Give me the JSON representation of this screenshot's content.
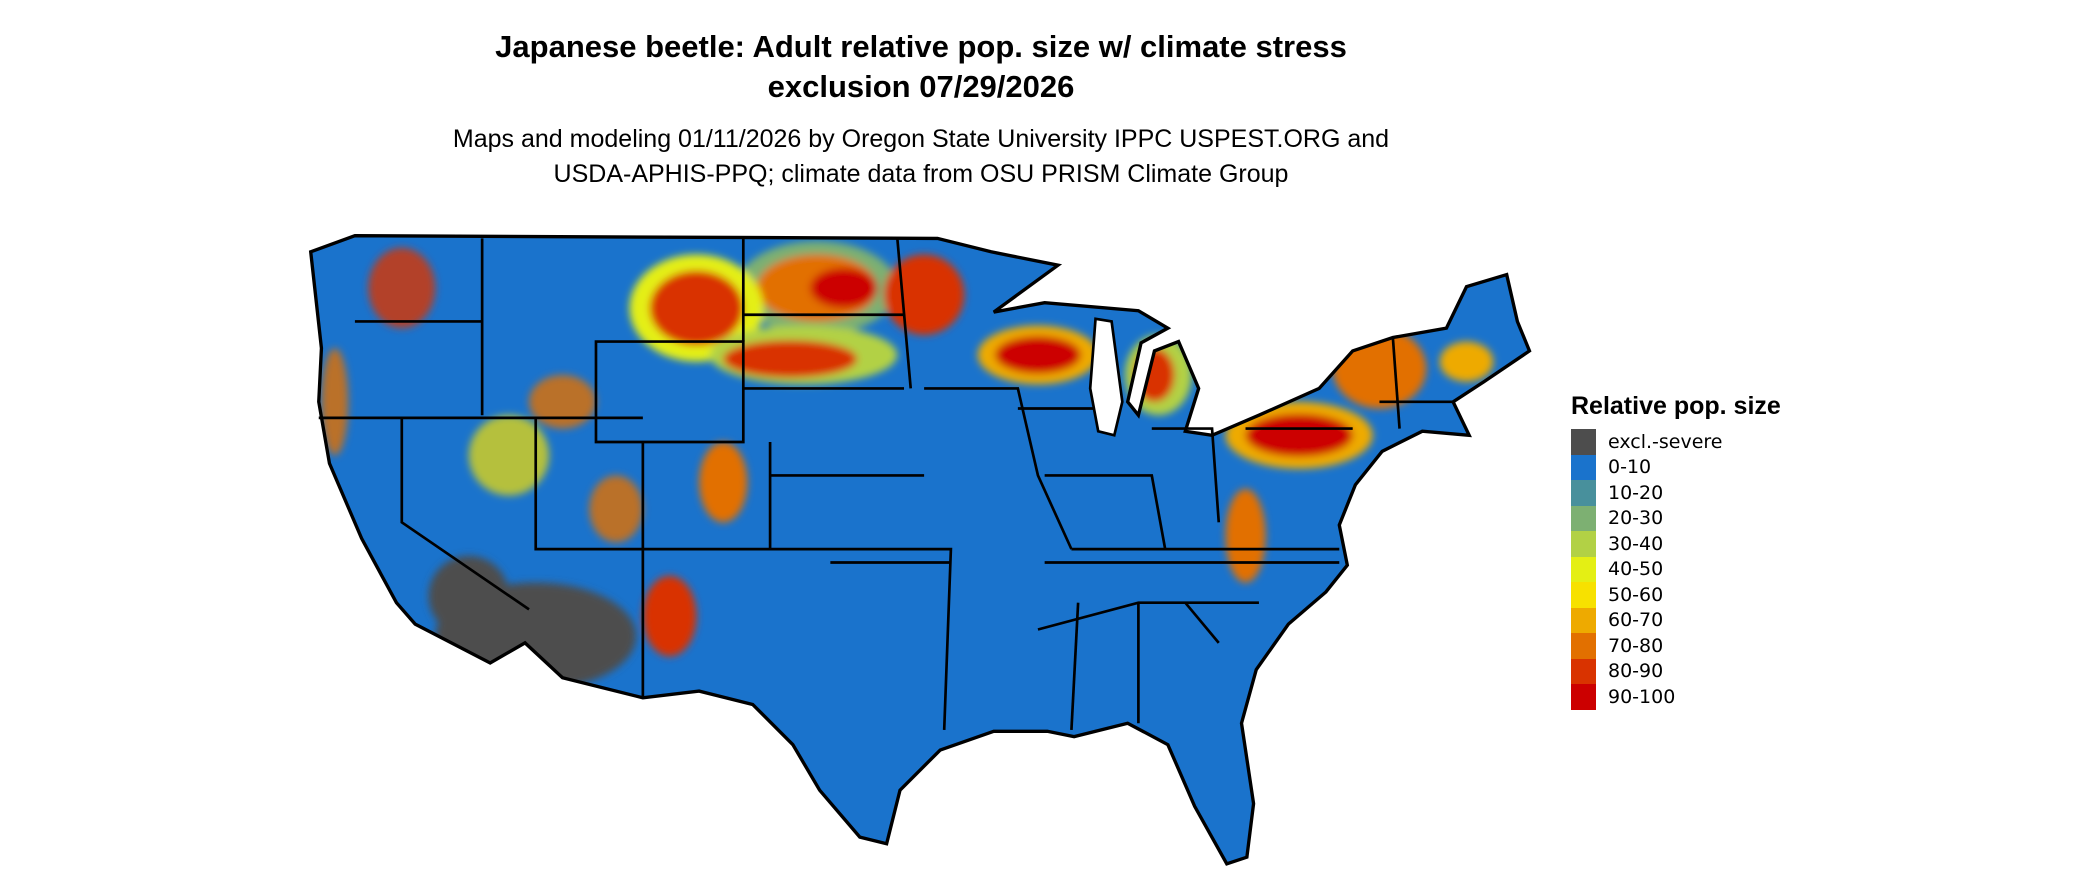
{
  "header": {
    "title_line1": "Japanese beetle: Adult relative pop. size w/ climate stress",
    "title_line2": "exclusion 07/29/2026",
    "subtitle_line1": "Maps and modeling 01/11/2026 by Oregon State University IPPC USPEST.ORG and",
    "subtitle_line2": "USDA-APHIS-PPQ; climate data from OSU PRISM Climate Group"
  },
  "map": {
    "region": "Contiguous United States",
    "base_color": "#1a73cc",
    "legend": {
      "title": "Relative pop. size",
      "items": [
        {
          "label": "excl.-severe",
          "color": "#4d4d4d"
        },
        {
          "label": "0-10",
          "color": "#1a73cc"
        },
        {
          "label": "10-20",
          "color": "#48909c"
        },
        {
          "label": "20-30",
          "color": "#7db072"
        },
        {
          "label": "30-40",
          "color": "#b2d145"
        },
        {
          "label": "40-50",
          "color": "#e4ef14"
        },
        {
          "label": "50-60",
          "color": "#f7e100"
        },
        {
          "label": "60-70",
          "color": "#eeaa00"
        },
        {
          "label": "70-80",
          "color": "#e27000"
        },
        {
          "label": "80-90",
          "color": "#d93300"
        },
        {
          "label": "90-100",
          "color": "#cc0000"
        }
      ]
    }
  }
}
